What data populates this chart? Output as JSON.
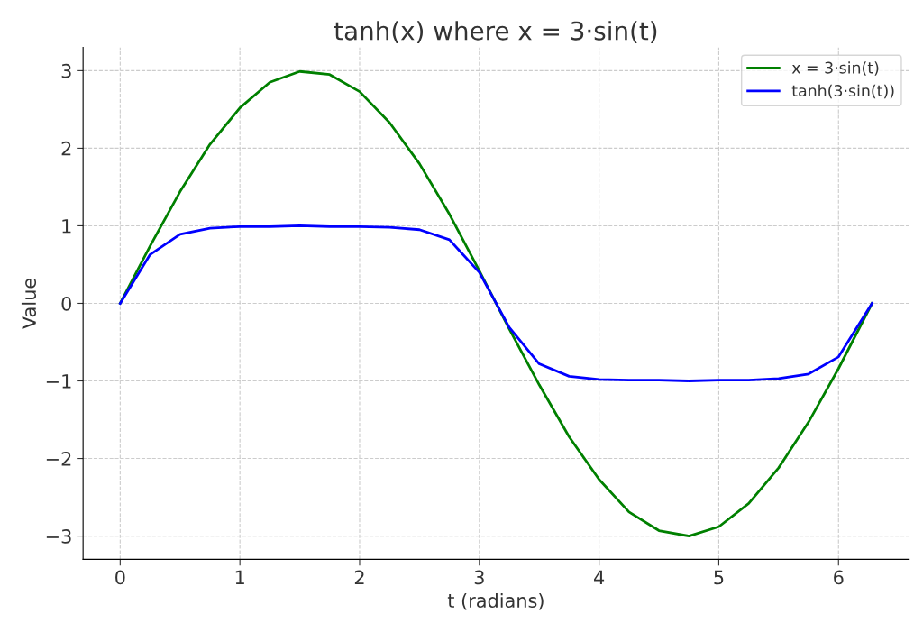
{
  "chart_data": {
    "type": "line",
    "title": "tanh(x) where x = 3·sin(t)",
    "xlabel": "t (radians)",
    "ylabel": "Value",
    "x": [
      0,
      0.25,
      0.5,
      0.75,
      1.0,
      1.25,
      1.5,
      1.75,
      2.0,
      2.25,
      2.5,
      2.75,
      3.0,
      3.25,
      3.5,
      3.75,
      4.0,
      4.25,
      4.5,
      4.75,
      5.0,
      5.25,
      5.5,
      5.75,
      6.0,
      6.28
    ],
    "series": [
      {
        "name": "x = 3·sin(t)",
        "color": "#008000",
        "values": [
          0,
          0.74,
          1.44,
          2.05,
          2.52,
          2.85,
          2.99,
          2.95,
          2.73,
          2.33,
          1.8,
          1.15,
          0.42,
          -0.33,
          -1.05,
          -1.72,
          -2.27,
          -2.69,
          -2.93,
          -3.0,
          -2.88,
          -2.58,
          -2.12,
          -1.53,
          -0.84,
          0
        ]
      },
      {
        "name": "tanh(3·sin(t))",
        "color": "#0000ff",
        "values": [
          0,
          0.63,
          0.89,
          0.97,
          0.99,
          0.99,
          1.0,
          0.99,
          0.99,
          0.98,
          0.95,
          0.82,
          0.4,
          -0.31,
          -0.78,
          -0.94,
          -0.98,
          -0.99,
          -0.99,
          -1.0,
          -0.99,
          -0.99,
          -0.97,
          -0.91,
          -0.69,
          0
        ]
      }
    ],
    "xlim": [
      -0.31,
      6.59
    ],
    "ylim": [
      -3.3,
      3.3
    ],
    "xticks": [
      0,
      1,
      2,
      3,
      4,
      5,
      6
    ],
    "yticks": [
      {
        "value": -3,
        "label": "−3"
      },
      {
        "value": -2,
        "label": "−2"
      },
      {
        "value": -1,
        "label": "−1"
      },
      0,
      1,
      2,
      3
    ],
    "grid": true,
    "legend": "top right",
    "marker": "none",
    "line_style": "solid"
  }
}
